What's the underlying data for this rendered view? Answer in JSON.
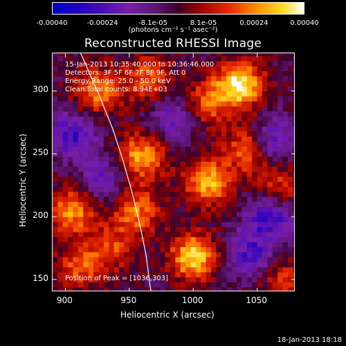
{
  "colorbar": {
    "tick_labels": [
      "-0.00040",
      "-0.00024",
      "-8.1e-05",
      "8.1e-05",
      "0.00024",
      "0.00040"
    ],
    "units_label": "(photons cm⁻² s⁻¹ asec⁻²)"
  },
  "chart_data": {
    "type": "heatmap",
    "title": "Reconstructed RHESSI Image",
    "xlabel": "Heliocentric X (arcsec)",
    "ylabel": "Heliocentric Y (arcsec)",
    "xlim": [
      890,
      1080
    ],
    "ylim": [
      140,
      330
    ],
    "x_ticks": [
      900,
      950,
      1000,
      1050
    ],
    "y_ticks": [
      150,
      200,
      250,
      300
    ],
    "value_range": [
      -0.0004,
      0.0004
    ],
    "colormap": "blue-purple-red-orange-yellow-white",
    "limb_curve": [
      [
        912,
        330
      ],
      [
        925,
        300
      ],
      [
        937,
        270
      ],
      [
        945,
        245
      ],
      [
        952,
        220
      ],
      [
        958,
        195
      ],
      [
        963,
        170
      ],
      [
        967,
        140
      ]
    ],
    "bright_sources": [
      {
        "x": 1036,
        "y": 305,
        "value": 0.0004
      },
      {
        "x": 1000,
        "y": 168,
        "value": 0.00036
      },
      {
        "x": 1012,
        "y": 228,
        "value": 0.00032
      },
      {
        "x": 1045,
        "y": 255,
        "value": 0.0003
      },
      {
        "x": 960,
        "y": 248,
        "value": 0.0003
      },
      {
        "x": 925,
        "y": 300,
        "value": 0.00026
      },
      {
        "x": 905,
        "y": 205,
        "value": 0.00028
      },
      {
        "x": 955,
        "y": 205,
        "value": 0.00026
      },
      {
        "x": 1010,
        "y": 290,
        "value": 0.00022
      },
      {
        "x": 965,
        "y": 310,
        "value": 0.00022
      },
      {
        "x": 910,
        "y": 160,
        "value": 0.0002
      },
      {
        "x": 1068,
        "y": 225,
        "value": 0.00018
      },
      {
        "x": 935,
        "y": 175,
        "value": 0.00018
      },
      {
        "x": 1070,
        "y": 150,
        "value": 0.00016
      }
    ],
    "dark_sources": [
      {
        "x": 1060,
        "y": 260,
        "value": -0.00028
      },
      {
        "x": 1060,
        "y": 200,
        "value": -0.00026
      },
      {
        "x": 905,
        "y": 265,
        "value": -0.00024
      },
      {
        "x": 985,
        "y": 280,
        "value": -0.0002
      },
      {
        "x": 1045,
        "y": 170,
        "value": -0.00022
      },
      {
        "x": 930,
        "y": 230,
        "value": -0.00018
      }
    ],
    "annotations": [
      "15-Jan-2013 10:35:40.000 to 10:36:46.000",
      "Detectors: 3F 5F 6F 7F 8F 9F, Att 0",
      "Energy Range: 25.0 - 50.0 keV",
      "Clean    Total counts: 8.94E+03"
    ],
    "peak_label": "Position of Peak = [1036,303]"
  },
  "footer": {
    "timestamp": "18-Jan-2013 18:18"
  }
}
